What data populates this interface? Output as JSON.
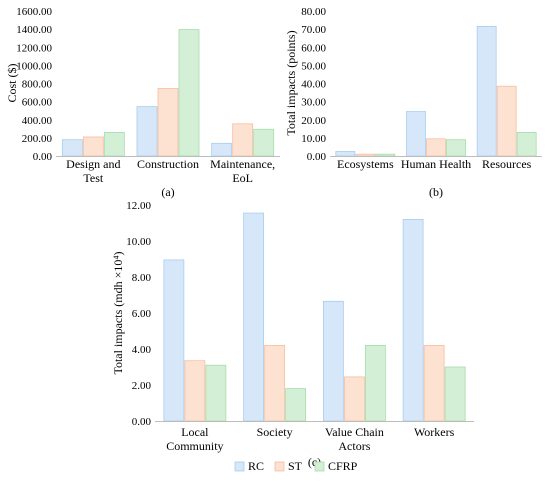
{
  "colors": {
    "RC": "#d5e7f8",
    "RC_edge": "#a9cdee",
    "ST": "#fde1d1",
    "ST_edge": "#f7bea2",
    "CFRP": "#d3f0d6",
    "CFRP_edge": "#a6dcae",
    "axis": "#bdbdbd"
  },
  "legend": [
    "RC",
    "ST",
    "CFRP"
  ],
  "chart_data": [
    {
      "type": "bar",
      "panel": "(a)",
      "ylabel": "Cost ($)",
      "categories": [
        [
          "Design and",
          "Test"
        ],
        [
          "Construction"
        ],
        [
          "Maintenance,",
          "EoL"
        ]
      ],
      "series": [
        {
          "name": "RC",
          "values": [
            180,
            545,
            140
          ]
        },
        {
          "name": "ST",
          "values": [
            210,
            745,
            355
          ]
        },
        {
          "name": "CFRP",
          "values": [
            260,
            1395,
            295
          ]
        }
      ],
      "ylim": [
        0,
        1600
      ],
      "ticks": [
        "0.00",
        "200.00",
        "400.00",
        "600.00",
        "800.00",
        "1000.00",
        "1200.00",
        "1400.00",
        "1600.00"
      ]
    },
    {
      "type": "bar",
      "panel": "(b)",
      "ylabel": "Total impacts (points)",
      "categories": [
        [
          "Ecosystems"
        ],
        [
          "Human Health"
        ],
        [
          "Resources"
        ]
      ],
      "series": [
        {
          "name": "RC",
          "values": [
            2.5,
            24.5,
            71.5
          ]
        },
        {
          "name": "ST",
          "values": [
            1.0,
            9.5,
            38.5
          ]
        },
        {
          "name": "CFRP",
          "values": [
            1.0,
            9.0,
            13.0
          ]
        }
      ],
      "ylim": [
        0,
        80
      ],
      "ticks": [
        "0.00",
        "10.00",
        "20.00",
        "30.00",
        "40.00",
        "50.00",
        "60.00",
        "70.00",
        "80.00"
      ]
    },
    {
      "type": "bar",
      "panel": "(c)",
      "ylabel": "Total impacts (mdh ×10⁴)",
      "categories": [
        [
          "Local",
          "Community"
        ],
        [
          "Society"
        ],
        [
          "Value Chain",
          "Actors"
        ],
        [
          "Workers"
        ]
      ],
      "series": [
        {
          "name": "RC",
          "values": [
            8.95,
            11.55,
            6.65,
            11.2
          ]
        },
        {
          "name": "ST",
          "values": [
            3.35,
            4.2,
            2.45,
            4.2
          ]
        },
        {
          "name": "CFRP",
          "values": [
            3.1,
            1.8,
            4.2,
            3.0
          ]
        }
      ],
      "ylim": [
        0,
        12
      ],
      "ticks": [
        "0.00",
        "2.00",
        "4.00",
        "6.00",
        "8.00",
        "10.00",
        "12.00"
      ]
    }
  ]
}
